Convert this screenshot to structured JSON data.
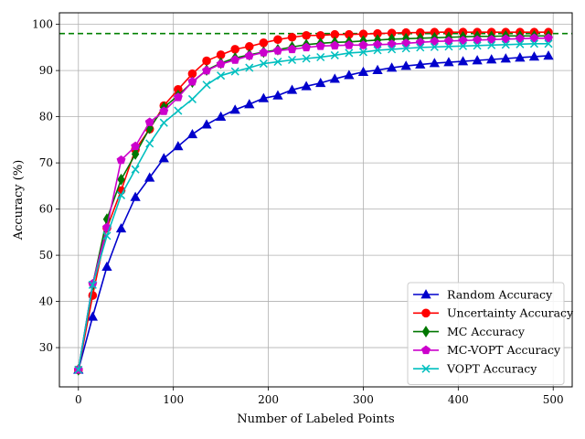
{
  "chart_data": {
    "type": "line",
    "title": "",
    "xlabel": "Number of Labeled Points",
    "ylabel": "Accuracy (%)",
    "xlim": [
      -20,
      520
    ],
    "ylim": [
      21.5,
      102.5
    ],
    "x_ticks": [
      0,
      100,
      200,
      300,
      400,
      500
    ],
    "y_ticks": [
      30,
      40,
      50,
      60,
      70,
      80,
      90,
      100
    ],
    "grid": true,
    "legend_position": "lower-right",
    "reference_line": {
      "y": 98,
      "color": "#008000",
      "style": "dashed"
    },
    "x": [
      0,
      15,
      30,
      45,
      60,
      75,
      90,
      105,
      120,
      135,
      150,
      165,
      180,
      195,
      210,
      225,
      240,
      255,
      270,
      285,
      300,
      315,
      330,
      345,
      360,
      375,
      390,
      405,
      420,
      435,
      450,
      465,
      480,
      495
    ],
    "series": [
      {
        "name": "Random Accuracy",
        "color": "#0000cc",
        "marker": "triangle",
        "values": [
          25.2,
          36.7,
          47.5,
          55.8,
          62.6,
          66.8,
          71.0,
          73.6,
          76.2,
          78.3,
          80.0,
          81.5,
          82.7,
          84.0,
          84.6,
          85.8,
          86.6,
          87.3,
          88.2,
          89.0,
          89.7,
          90.1,
          90.6,
          91.0,
          91.3,
          91.6,
          91.8,
          92.0,
          92.2,
          92.4,
          92.6,
          92.8,
          93.0,
          93.2
        ]
      },
      {
        "name": "Uncertainty Accuracy",
        "color": "#ff0000",
        "marker": "circle",
        "values": [
          25.2,
          41.3,
          55.9,
          64.0,
          72.9,
          77.3,
          82.4,
          85.9,
          89.3,
          92.1,
          93.4,
          94.6,
          95.2,
          96.0,
          96.7,
          97.2,
          97.6,
          97.6,
          97.8,
          97.8,
          97.9,
          98.0,
          98.1,
          98.2,
          98.2,
          98.3,
          98.3,
          98.3,
          98.3,
          98.3,
          98.3,
          98.3,
          98.3,
          98.3
        ]
      },
      {
        "name": "MC Accuracy",
        "color": "#007700",
        "marker": "diamond",
        "values": [
          25.2,
          43.6,
          57.8,
          66.4,
          71.9,
          77.5,
          82.0,
          84.6,
          87.5,
          90.1,
          91.6,
          92.7,
          93.4,
          94.0,
          94.5,
          95.1,
          95.6,
          95.9,
          96.1,
          96.2,
          96.4,
          96.6,
          96.8,
          96.9,
          97.0,
          97.1,
          97.2,
          97.3,
          97.4,
          97.4,
          97.5,
          97.5,
          97.5,
          97.5
        ]
      },
      {
        "name": "MC-VOPT Accuracy",
        "color": "#cc00cc",
        "marker": "pentagon",
        "values": [
          25.2,
          43.8,
          56.0,
          70.6,
          73.6,
          78.8,
          81.2,
          84.2,
          87.6,
          90.0,
          91.4,
          92.3,
          93.2,
          93.9,
          94.3,
          94.6,
          95.0,
          95.3,
          95.4,
          95.5,
          95.5,
          95.6,
          95.7,
          95.9,
          96.1,
          96.3,
          96.4,
          96.5,
          96.6,
          96.7,
          96.8,
          96.9,
          97.0,
          97.0
        ]
      },
      {
        "name": "VOPT Accuracy",
        "color": "#00bfbf",
        "marker": "x",
        "values": [
          25.2,
          43.6,
          54.2,
          63.0,
          68.6,
          74.2,
          78.7,
          81.3,
          83.8,
          86.9,
          88.9,
          89.8,
          90.6,
          91.5,
          91.9,
          92.3,
          92.6,
          92.9,
          93.3,
          93.8,
          94.0,
          94.4,
          94.6,
          94.8,
          95.0,
          95.1,
          95.2,
          95.3,
          95.4,
          95.5,
          95.6,
          95.7,
          95.8,
          95.8
        ]
      }
    ]
  }
}
